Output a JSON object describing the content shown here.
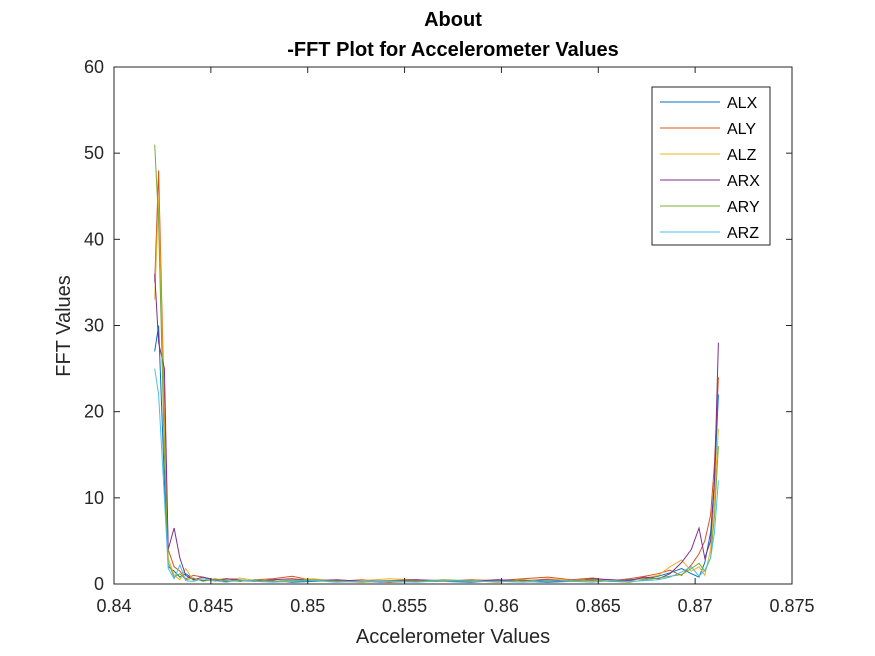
{
  "chart_data": {
    "type": "line",
    "title": "About",
    "subtitle": "-FFT Plot for Accelerometer Values",
    "xlabel": "Accelerometer Values",
    "ylabel": "FFT Values",
    "xlim": [
      0.84,
      0.875
    ],
    "ylim": [
      0,
      60
    ],
    "xticks": [
      "0.84",
      "0.845",
      "0.85",
      "0.855",
      "0.86",
      "0.865",
      "0.87",
      "0.875"
    ],
    "yticks": [
      "0",
      "10",
      "20",
      "30",
      "40",
      "50",
      "60"
    ],
    "grid": false,
    "legend_position": "top-right",
    "x": [
      0.8421,
      0.8423,
      0.8426,
      0.8428,
      0.8431,
      0.8434,
      0.8437,
      0.8441,
      0.8446,
      0.8452,
      0.8458,
      0.8465,
      0.8473,
      0.8482,
      0.8492,
      0.8503,
      0.8515,
      0.8528,
      0.8542,
      0.8556,
      0.857,
      0.8584,
      0.8598,
      0.8611,
      0.8624,
      0.8636,
      0.8647,
      0.8657,
      0.8666,
      0.8674,
      0.8681,
      0.8687,
      0.8693,
      0.8698,
      0.8702,
      0.8705,
      0.8708,
      0.871,
      0.8712
    ],
    "series": [
      {
        "name": "ALX",
        "color": "#0072BD",
        "values": [
          27,
          30,
          12,
          2,
          1.5,
          0.8,
          1.2,
          0.6,
          0.4,
          0.5,
          0.3,
          0.4,
          0.3,
          0.4,
          0.2,
          0.3,
          0.4,
          0.3,
          0.2,
          0.3,
          0.3,
          0.2,
          0.4,
          0.3,
          0.2,
          0.3,
          0.4,
          0.3,
          0.5,
          0.6,
          0.9,
          1.3,
          1.8,
          1.2,
          0.8,
          2.5,
          6,
          12,
          22
        ]
      },
      {
        "name": "ALY",
        "color": "#D95319",
        "values": [
          35,
          48,
          20,
          4,
          2,
          1.5,
          0.6,
          1.0,
          0.8,
          0.5,
          0.6,
          0.3,
          0.5,
          0.6,
          0.9,
          0.4,
          0.3,
          0.5,
          0.2,
          0.4,
          0.3,
          0.5,
          0.4,
          0.6,
          0.8,
          0.5,
          0.7,
          0.4,
          0.6,
          0.9,
          1.2,
          1.6,
          1.0,
          2.2,
          3.5,
          5,
          8,
          14,
          24
        ]
      },
      {
        "name": "ALZ",
        "color": "#EDB120",
        "values": [
          33,
          45,
          18,
          3,
          1,
          0.5,
          1.8,
          0.4,
          0.6,
          0.3,
          0.5,
          0.7,
          0.4,
          0.3,
          0.5,
          0.6,
          0.3,
          0.4,
          0.6,
          0.5,
          0.3,
          0.4,
          0.5,
          0.3,
          0.6,
          0.4,
          0.3,
          0.5,
          0.4,
          0.7,
          1.0,
          2.0,
          2.8,
          1.5,
          2.0,
          1.0,
          4,
          10,
          18
        ]
      },
      {
        "name": "ARX",
        "color": "#7E2F8E",
        "values": [
          36,
          28,
          25,
          4,
          6.5,
          3,
          1.0,
          0.5,
          0.8,
          0.4,
          0.6,
          0.5,
          0.3,
          0.5,
          0.6,
          0.4,
          0.5,
          0.3,
          0.4,
          0.5,
          0.4,
          0.3,
          0.5,
          0.4,
          0.5,
          0.3,
          0.6,
          0.5,
          0.4,
          0.8,
          0.6,
          1.2,
          2.5,
          4,
          6.5,
          3,
          5,
          12,
          28
        ]
      },
      {
        "name": "ARY",
        "color": "#77AC30",
        "values": [
          51,
          42,
          15,
          2.5,
          0.8,
          1.2,
          0.5,
          0.7,
          0.3,
          0.6,
          0.4,
          0.3,
          0.5,
          0.3,
          0.4,
          0.5,
          0.3,
          0.2,
          0.4,
          0.3,
          0.5,
          0.4,
          0.2,
          0.5,
          0.3,
          0.4,
          0.5,
          0.3,
          0.2,
          0.5,
          0.7,
          0.9,
          1.1,
          1.8,
          2.4,
          1.5,
          3,
          8,
          16
        ]
      },
      {
        "name": "ARZ",
        "color": "#4DBEEE",
        "values": [
          25,
          22,
          10,
          1.8,
          0.6,
          2.2,
          0.4,
          0.3,
          0.6,
          0.4,
          0.2,
          0.5,
          0.3,
          0.2,
          0.3,
          0.4,
          0.2,
          0.3,
          0.3,
          0.2,
          0.4,
          0.3,
          0.3,
          0.2,
          0.4,
          0.3,
          0.2,
          0.4,
          0.3,
          0.4,
          0.5,
          0.8,
          1.4,
          2.0,
          0.9,
          1.6,
          3,
          6,
          12
        ]
      }
    ]
  }
}
